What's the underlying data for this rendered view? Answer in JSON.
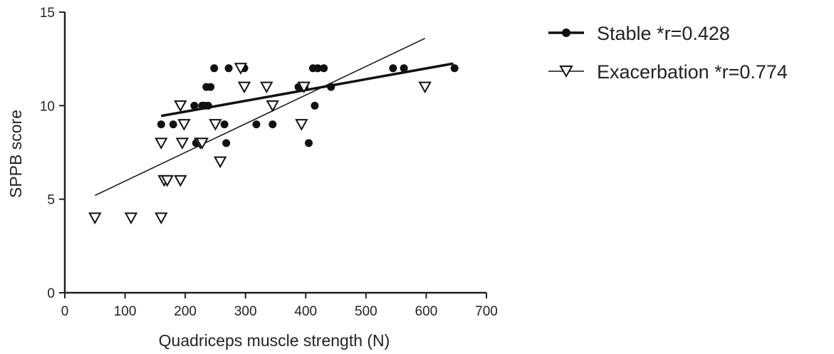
{
  "chart_data": {
    "type": "scatter",
    "title": "",
    "xlabel": "Quadriceps muscle strength (N)",
    "ylabel": "SPPB score",
    "xlim": [
      0,
      700
    ],
    "ylim": [
      0,
      15
    ],
    "xticks": [
      0,
      100,
      200,
      300,
      400,
      500,
      600,
      700
    ],
    "yticks": [
      0,
      5,
      10,
      15
    ],
    "grid": false,
    "legend_position": "top-right",
    "series": [
      {
        "name": "Stable *r=0.428",
        "marker": "filled-circle",
        "color": "#111111",
        "points": [
          [
            160,
            9
          ],
          [
            180,
            9
          ],
          [
            215,
            10
          ],
          [
            218,
            8
          ],
          [
            222,
            8
          ],
          [
            228,
            10
          ],
          [
            232,
            10
          ],
          [
            235,
            11
          ],
          [
            238,
            10
          ],
          [
            242,
            11
          ],
          [
            248,
            12
          ],
          [
            265,
            9
          ],
          [
            268,
            8
          ],
          [
            272,
            12
          ],
          [
            298,
            12
          ],
          [
            318,
            9
          ],
          [
            345,
            9
          ],
          [
            388,
            11
          ],
          [
            398,
            11
          ],
          [
            405,
            8
          ],
          [
            412,
            12
          ],
          [
            415,
            10
          ],
          [
            420,
            12
          ],
          [
            430,
            12
          ],
          [
            442,
            11
          ],
          [
            545,
            12
          ],
          [
            563,
            12
          ],
          [
            647,
            12
          ]
        ],
        "trendline": {
          "x": [
            160,
            645
          ],
          "y": [
            9.45,
            12.25
          ]
        }
      },
      {
        "name": "Exacerbation *r=0.774",
        "marker": "open-triangle-down",
        "color": "#111111",
        "points": [
          [
            50,
            4
          ],
          [
            110,
            4
          ],
          [
            160,
            4
          ],
          [
            160,
            8
          ],
          [
            165,
            6
          ],
          [
            170,
            6
          ],
          [
            192,
            6
          ],
          [
            192,
            10
          ],
          [
            195,
            8
          ],
          [
            198,
            9
          ],
          [
            225,
            8
          ],
          [
            228,
            8
          ],
          [
            250,
            9
          ],
          [
            258,
            7
          ],
          [
            292,
            12
          ],
          [
            298,
            11
          ],
          [
            335,
            11
          ],
          [
            345,
            10
          ],
          [
            393,
            9
          ],
          [
            397,
            11
          ],
          [
            598,
            11
          ]
        ],
        "trendline": {
          "x": [
            50,
            598
          ],
          "y": [
            5.2,
            13.6
          ]
        }
      }
    ]
  }
}
